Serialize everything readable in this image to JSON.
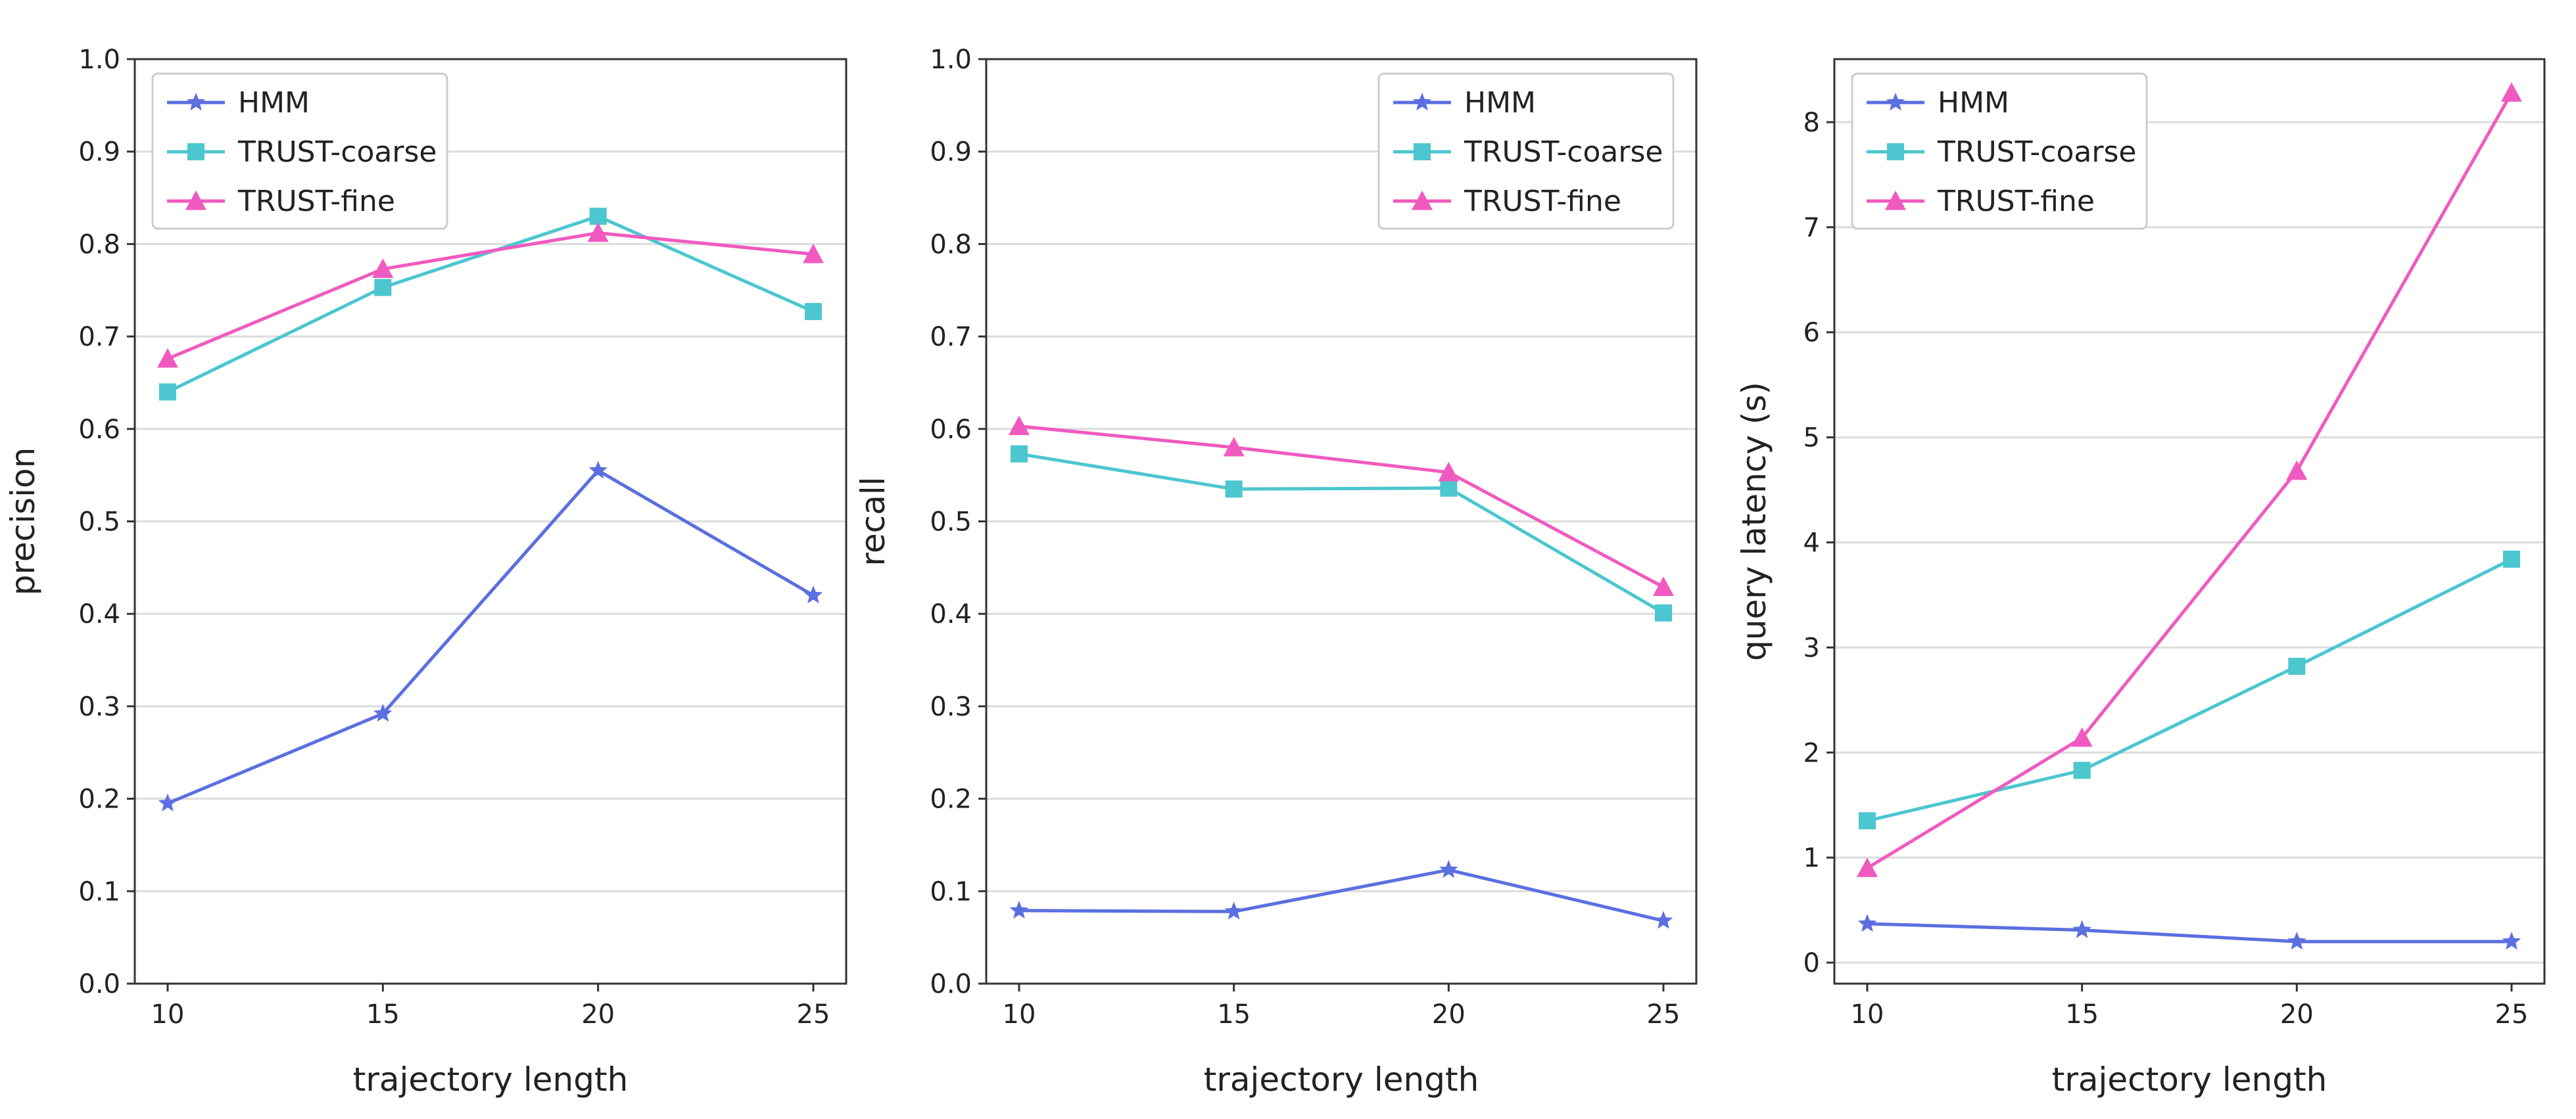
{
  "chart_data": [
    {
      "type": "line",
      "x": [
        10,
        15,
        20,
        25
      ],
      "xlabel": "trajectory length",
      "ylabel": "precision",
      "ylim": [
        0,
        1.0
      ],
      "yticks": [
        "0.0",
        "0.1",
        "0.2",
        "0.3",
        "0.4",
        "0.5",
        "0.6",
        "0.7",
        "0.8",
        "0.9",
        "1.0"
      ],
      "yticks_values": [
        0,
        0.1,
        0.2,
        0.3,
        0.4,
        0.5,
        0.6,
        0.7,
        0.8,
        0.9,
        1.0
      ],
      "grid": "horizontal",
      "legend": "top-left",
      "series": [
        {
          "name": "HMM",
          "color": "#5b6fe0",
          "marker": "star-icon",
          "values": [
            0.195,
            0.292,
            0.555,
            0.42
          ]
        },
        {
          "name": "TRUST-coarse",
          "color": "#4cc6cf",
          "marker": "square-icon",
          "values": [
            0.64,
            0.753,
            0.83,
            0.727
          ]
        },
        {
          "name": "TRUST-fine",
          "color": "#f05ac0",
          "marker": "triangle-icon",
          "values": [
            0.676,
            0.773,
            0.812,
            0.789
          ]
        }
      ]
    },
    {
      "type": "line",
      "x": [
        10,
        15,
        20,
        25
      ],
      "xlabel": "trajectory length",
      "ylabel": "recall",
      "ylim": [
        0,
        1.0
      ],
      "yticks": [
        "0.0",
        "0.1",
        "0.2",
        "0.3",
        "0.4",
        "0.5",
        "0.6",
        "0.7",
        "0.8",
        "0.9",
        "1.0"
      ],
      "yticks_values": [
        0,
        0.1,
        0.2,
        0.3,
        0.4,
        0.5,
        0.6,
        0.7,
        0.8,
        0.9,
        1.0
      ],
      "grid": "horizontal",
      "legend": "top-right",
      "series": [
        {
          "name": "HMM",
          "color": "#5b6fe0",
          "marker": "star-icon",
          "values": [
            0.079,
            0.078,
            0.123,
            0.068
          ]
        },
        {
          "name": "TRUST-coarse",
          "color": "#4cc6cf",
          "marker": "square-icon",
          "values": [
            0.573,
            0.535,
            0.536,
            0.401
          ]
        },
        {
          "name": "TRUST-fine",
          "color": "#f05ac0",
          "marker": "triangle-icon",
          "values": [
            0.603,
            0.58,
            0.553,
            0.429
          ]
        }
      ]
    },
    {
      "type": "line",
      "x": [
        10,
        15,
        20,
        25
      ],
      "xlabel": "trajectory length",
      "ylabel": "query latency (s)",
      "ylim": [
        -0.2,
        8.6
      ],
      "yticks": [
        "0",
        "1",
        "2",
        "3",
        "4",
        "5",
        "6",
        "7",
        "8"
      ],
      "yticks_values": [
        0,
        1,
        2,
        3,
        4,
        5,
        6,
        7,
        8
      ],
      "grid": "horizontal",
      "legend": "top-left",
      "series": [
        {
          "name": "HMM",
          "color": "#5b6fe0",
          "marker": "star-icon",
          "values": [
            0.37,
            0.31,
            0.2,
            0.2
          ]
        },
        {
          "name": "TRUST-coarse",
          "color": "#4cc6cf",
          "marker": "square-icon",
          "values": [
            1.35,
            1.83,
            2.82,
            3.84
          ]
        },
        {
          "name": "TRUST-fine",
          "color": "#f05ac0",
          "marker": "triangle-icon",
          "values": [
            0.9,
            2.14,
            4.68,
            8.28
          ]
        }
      ]
    }
  ]
}
